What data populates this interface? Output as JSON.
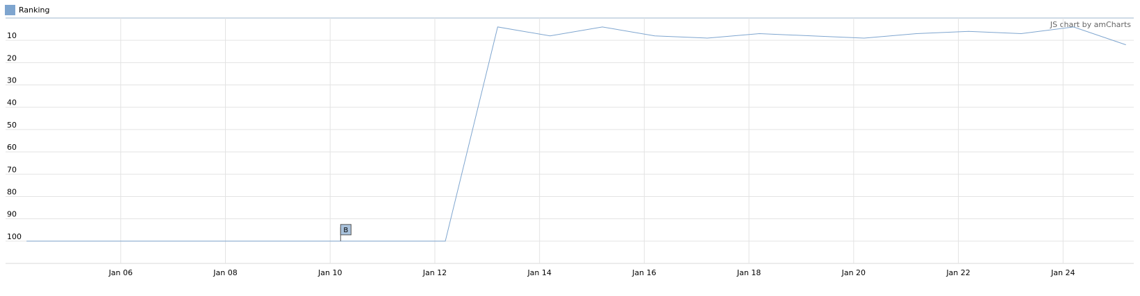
{
  "chart_data": {
    "type": "line",
    "x": [
      4.2,
      5.2,
      6.2,
      7.2,
      8.2,
      9.2,
      10.2,
      11.2,
      12.2,
      13.2,
      14.2,
      15.2,
      16.2,
      17.2,
      18.2,
      19.2,
      20.2,
      21.2,
      22.2,
      23.2,
      24.2,
      25.2
    ],
    "series": [
      {
        "name": "Ranking",
        "color": "#7ea5cf",
        "values": [
          100,
          100,
          100,
          100,
          100,
          100,
          100,
          100,
          100,
          4,
          8,
          4,
          8,
          9,
          7,
          8,
          9,
          7,
          6,
          7,
          4,
          12
        ]
      }
    ],
    "xlim": [
      3.8,
      25.35
    ],
    "xticks": [
      {
        "value": 6,
        "label": "Jan 06"
      },
      {
        "value": 8,
        "label": "Jan 08"
      },
      {
        "value": 10,
        "label": "Jan 10"
      },
      {
        "value": 12,
        "label": "Jan 12"
      },
      {
        "value": 14,
        "label": "Jan 14"
      },
      {
        "value": 16,
        "label": "Jan 16"
      },
      {
        "value": 18,
        "label": "Jan 18"
      },
      {
        "value": 20,
        "label": "Jan 20"
      },
      {
        "value": 22,
        "label": "Jan 22"
      },
      {
        "value": 24,
        "label": "Jan 24"
      }
    ],
    "ylim": [
      0,
      110
    ],
    "reversed": true,
    "yticks": [
      10,
      20,
      30,
      40,
      50,
      60,
      70,
      80,
      90,
      100
    ],
    "grid": true,
    "legend": "top-left",
    "annotations": [
      {
        "x": 10.2,
        "y": 100,
        "label": "B"
      }
    ],
    "credit": "JS chart by amCharts"
  }
}
